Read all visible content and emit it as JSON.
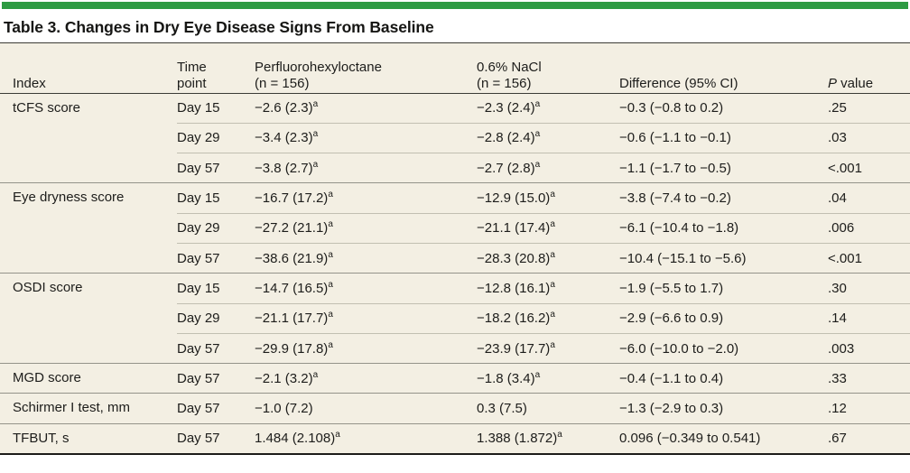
{
  "colors": {
    "accent_green": "#2E9B43",
    "table_background": "#F3EFE3",
    "rule_dark": "#3B3B36",
    "rule_group": "#94938A",
    "rule_subrow": "#C1BFB1",
    "text": "#1D1D1B"
  },
  "title": "Table 3. Changes in Dry Eye Disease Signs From Baseline",
  "table": {
    "columns": [
      {
        "id": "index",
        "label": "Index"
      },
      {
        "id": "time_point",
        "label": "Time\npoint"
      },
      {
        "id": "perfluorohexyloctane",
        "label": "Perfluorohexyloctane\n(n = 156)"
      },
      {
        "id": "nacl",
        "label": "0.6% NaCl\n(n = 156)"
      },
      {
        "id": "difference",
        "label": "Difference (95% CI)"
      },
      {
        "id": "p_value",
        "label_italic": "P",
        "label_rest": " value"
      }
    ],
    "footnote_marker": "a",
    "groups": [
      {
        "index": "tCFS score",
        "rows": [
          {
            "time": "Day 15",
            "drug": "−2.6 (2.3)",
            "drug_sup": "a",
            "nacl": "−2.3 (2.4)",
            "nacl_sup": "a",
            "diff": "−0.3 (−0.8 to 0.2)",
            "p": ".25"
          },
          {
            "time": "Day 29",
            "drug": "−3.4 (2.3)",
            "drug_sup": "a",
            "nacl": "−2.8 (2.4)",
            "nacl_sup": "a",
            "diff": "−0.6 (−1.1 to −0.1)",
            "p": ".03"
          },
          {
            "time": "Day 57",
            "drug": "−3.8 (2.7)",
            "drug_sup": "a",
            "nacl": "−2.7 (2.8)",
            "nacl_sup": "a",
            "diff": "−1.1 (−1.7 to −0.5)",
            "p": "<.001"
          }
        ]
      },
      {
        "index": "Eye dryness score",
        "rows": [
          {
            "time": "Day 15",
            "drug": "−16.7 (17.2)",
            "drug_sup": "a",
            "nacl": "−12.9 (15.0)",
            "nacl_sup": "a",
            "diff": "−3.8 (−7.4 to −0.2)",
            "p": ".04"
          },
          {
            "time": "Day 29",
            "drug": "−27.2 (21.1)",
            "drug_sup": "a",
            "nacl": "−21.1 (17.4)",
            "nacl_sup": "a",
            "diff": "−6.1 (−10.4 to −1.8)",
            "p": ".006"
          },
          {
            "time": "Day 57",
            "drug": "−38.6 (21.9)",
            "drug_sup": "a",
            "nacl": "−28.3 (20.8)",
            "nacl_sup": "a",
            "diff": "−10.4 (−15.1 to −5.6)",
            "p": "<.001"
          }
        ]
      },
      {
        "index": "OSDI score",
        "rows": [
          {
            "time": "Day 15",
            "drug": "−14.7 (16.5)",
            "drug_sup": "a",
            "nacl": "−12.8 (16.1)",
            "nacl_sup": "a",
            "diff": "−1.9 (−5.5 to 1.7)",
            "p": ".30"
          },
          {
            "time": "Day 29",
            "drug": "−21.1 (17.7)",
            "drug_sup": "a",
            "nacl": "−18.2 (16.2)",
            "nacl_sup": "a",
            "diff": "−2.9 (−6.6 to 0.9)",
            "p": ".14"
          },
          {
            "time": "Day 57",
            "drug": "−29.9 (17.8)",
            "drug_sup": "a",
            "nacl": "−23.9 (17.7)",
            "nacl_sup": "a",
            "diff": "−6.0 (−10.0 to −2.0)",
            "p": ".003"
          }
        ]
      },
      {
        "index": "MGD score",
        "rows": [
          {
            "time": "Day 57",
            "drug": "−2.1 (3.2)",
            "drug_sup": "a",
            "nacl": "−1.8 (3.4)",
            "nacl_sup": "a",
            "diff": "−0.4 (−1.1 to 0.4)",
            "p": ".33"
          }
        ]
      },
      {
        "index": "Schirmer I test, mm",
        "rows": [
          {
            "time": "Day 57",
            "drug": "−1.0 (7.2)",
            "drug_sup": "",
            "nacl": "0.3 (7.5)",
            "nacl_sup": "",
            "diff": "−1.3 (−2.9 to 0.3)",
            "p": ".12"
          }
        ]
      },
      {
        "index": "TFBUT, s",
        "rows": [
          {
            "time": "Day 57",
            "drug": "1.484 (2.108)",
            "drug_sup": "a",
            "nacl": "1.388 (1.872)",
            "nacl_sup": "a",
            "diff": "0.096 (−0.349 to 0.541)",
            "p": ".67"
          }
        ]
      }
    ]
  }
}
